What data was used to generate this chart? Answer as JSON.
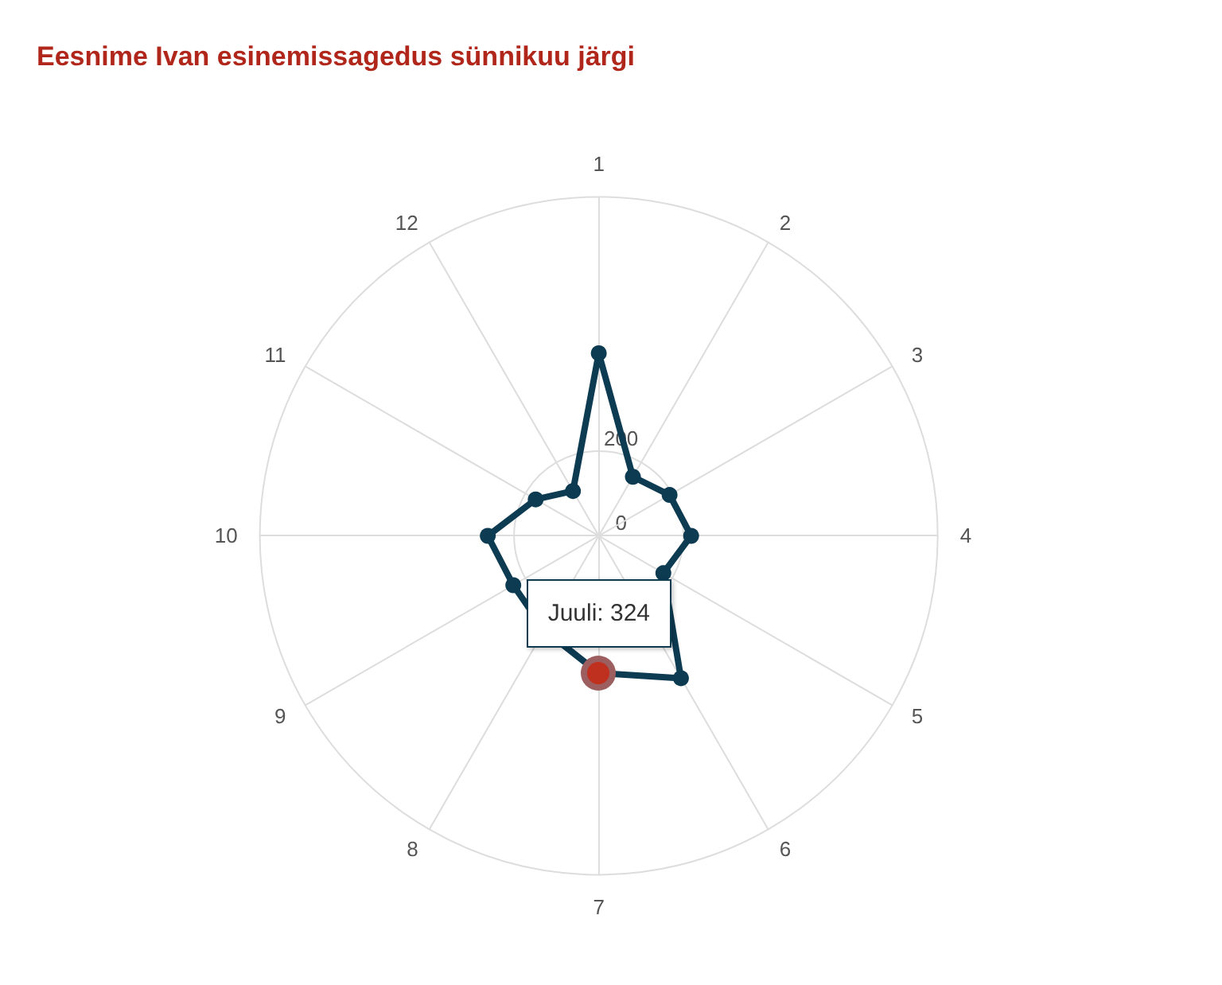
{
  "chart_data": {
    "type": "radar",
    "title": "Eesnime Ivan esinemissagedus sünnikuu järgi",
    "categories": [
      "1",
      "2",
      "3",
      "4",
      "5",
      "6",
      "7",
      "8",
      "9",
      "10",
      "11",
      "12"
    ],
    "series": [
      {
        "color": "#0d3b52",
        "values": [
          431,
          161,
          193,
          218,
          176,
          388,
          324,
          257,
          233,
          262,
          172,
          122
        ]
      }
    ],
    "ylim": [
      0,
      800
    ],
    "yticks": [
      0,
      200
    ],
    "marker": "circle",
    "line_style": "solid",
    "grid": true,
    "annotations": [
      {
        "text": "Juuli: 324",
        "x": "7"
      }
    ]
  }
}
